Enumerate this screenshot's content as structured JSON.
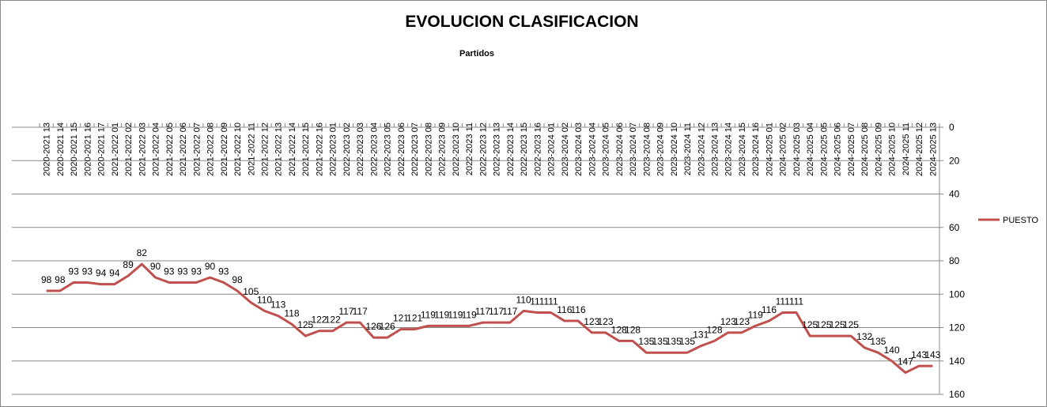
{
  "chart_data": {
    "type": "line",
    "title": "EVOLUCION CLASIFICACION",
    "x_label": "Partidos",
    "categories": [
      "2020-2021 13",
      "2020-2021 14",
      "2020-2021 15",
      "2020-2021 16",
      "2020-2021 17",
      "2021-2022 01",
      "2021-2022 02",
      "2021-2022 03",
      "2021-2022 04",
      "2021-2022 05",
      "2021-2022 06",
      "2021-2022 07",
      "2021-2022 08",
      "2021-2022 09",
      "2021-2022 10",
      "2021-2022 11",
      "2021-2022 12",
      "2021-2022 13",
      "2021-2022 14",
      "2021-2022 15",
      "2021-2022 16",
      "2022-2023 01",
      "2022-2023 02",
      "2022-2023 03",
      "2022-2023 04",
      "2022-2023 05",
      "2022-2023 06",
      "2022-2023 07",
      "2022-2023 08",
      "2022-2023 09",
      "2022-2023 10",
      "2022-2023 11",
      "2022-2023 12",
      "2022-2023 13",
      "2022-2023 14",
      "2022-2023 15",
      "2022-2023 16",
      "2023-2024 01",
      "2023-2024 02",
      "2023-2024 03",
      "2023-2024 04",
      "2023-2024 05",
      "2023-2024 06",
      "2023-2024 07",
      "2023-2024 08",
      "2023-2024 09",
      "2023-2024 10",
      "2023-2024 11",
      "2023-2024 12",
      "2023-2024 13",
      "2023-2024 14",
      "2023-2024 15",
      "2023-2024 16",
      "2024-2025 01",
      "2024-2025 02",
      "2024-2025 03",
      "2024-2025 04",
      "2024-2025 05",
      "2024-2025 06",
      "2024-2025 07",
      "2024-2025 08",
      "2024-2025 09",
      "2024-2025 10",
      "2024-2025 11",
      "2024-2025 12",
      "2024-2025 13"
    ],
    "series": [
      {
        "name": "PUESTO",
        "color": "#c0504d",
        "values": [
          98,
          98,
          93,
          93,
          94,
          94,
          89,
          82,
          90,
          93,
          93,
          93,
          90,
          93,
          98,
          105,
          110,
          113,
          118,
          125,
          122,
          122,
          117,
          117,
          126,
          126,
          121,
          121,
          119,
          119,
          119,
          119,
          117,
          117,
          117,
          110,
          111,
          111,
          116,
          116,
          123,
          123,
          128,
          128,
          135,
          135,
          135,
          135,
          131,
          128,
          123,
          123,
          119,
          116,
          111,
          111,
          125,
          125,
          125,
          125,
          132,
          135,
          140,
          147,
          143,
          143
        ]
      }
    ],
    "ylim": [
      0,
      160
    ],
    "yticks": [
      0,
      20,
      40,
      60,
      80,
      100,
      120,
      140,
      160
    ],
    "y_reversed": true,
    "grid": true,
    "legend": "right"
  }
}
